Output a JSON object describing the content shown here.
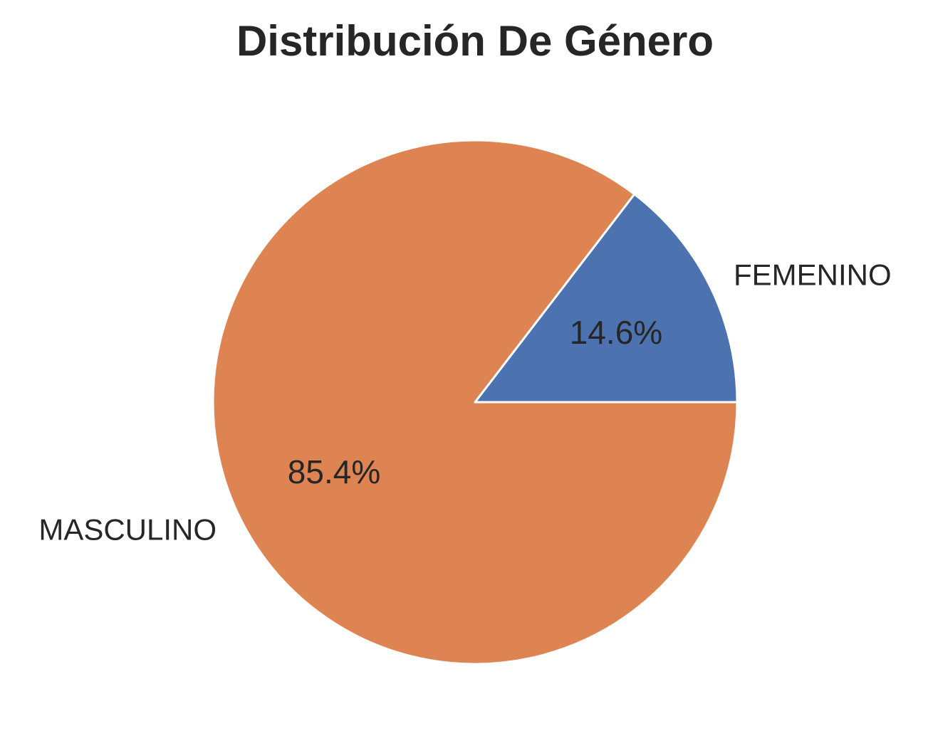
{
  "chart_data": {
    "type": "pie",
    "title": "Distribución De Género",
    "categories": [
      "FEMENINO",
      "MASCULINO"
    ],
    "values": [
      14.6,
      85.4
    ],
    "labels": [
      "14.6%",
      "85.4%"
    ],
    "colors": [
      "#4c72b0",
      "#dd8452"
    ],
    "edge_color": "#ffffff",
    "start_angle_deg": 0,
    "direction": "counterclockwise",
    "legend": "none"
  }
}
